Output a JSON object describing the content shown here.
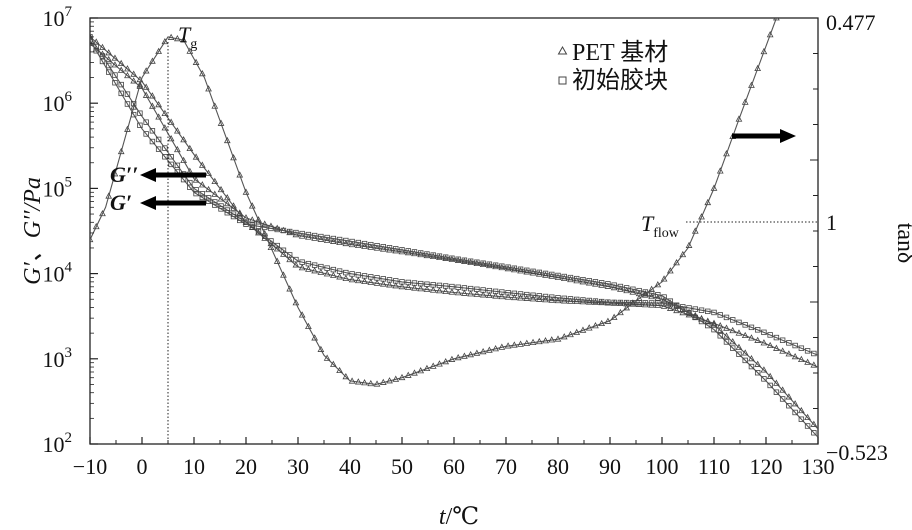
{
  "chart_data": {
    "type": "line",
    "x_axis": {
      "label_var": "t",
      "label_unit": "/℃",
      "range": [
        -10,
        130
      ],
      "ticks": [
        -10,
        0,
        10,
        20,
        30,
        40,
        50,
        60,
        70,
        80,
        90,
        100,
        110,
        120,
        130
      ],
      "tick_labels": [
        "−10",
        "0",
        "10",
        "20",
        "30",
        "40",
        "50",
        "60",
        "70",
        "80",
        "90",
        "100",
        "110",
        "120",
        "130"
      ]
    },
    "y_left": {
      "label": "G′、G′′/Pa",
      "scale": "log",
      "range": [
        100,
        10000000
      ],
      "ticks": [
        {
          "value": 100,
          "base": "10",
          "exp": "2"
        },
        {
          "value": 1000,
          "base": "10",
          "exp": "3"
        },
        {
          "value": 10000,
          "base": "10",
          "exp": "4"
        },
        {
          "value": 100000,
          "base": "10",
          "exp": "5"
        },
        {
          "value": 1000000,
          "base": "10",
          "exp": "6"
        },
        {
          "value": 10000000,
          "base": "10",
          "exp": "7"
        }
      ]
    },
    "y_right": {
      "label": "tanδ",
      "range_labels": [
        "−0.523",
        "1",
        "0.477"
      ]
    },
    "legend": {
      "placement": "top-right",
      "entries": [
        {
          "marker": "triangle",
          "label": "PET 基材"
        },
        {
          "marker": "square",
          "label": "初始胶块"
        }
      ]
    },
    "annotations": {
      "tg": {
        "main": "T",
        "sub": "g",
        "x": 5
      },
      "tflow": {
        "main": "T",
        "sub": "flow",
        "x": 105
      },
      "g_double_prime": "G′′",
      "g_prime": "G′"
    },
    "series": [
      {
        "name": "PET 基材 G′",
        "marker": "triangle",
        "x": [
          -10,
          0,
          10,
          20,
          30,
          40,
          50,
          60,
          70,
          80,
          90,
          100,
          110,
          120,
          130
        ],
        "y": [
          6000000,
          1800000,
          250000,
          40000,
          12000,
          8500,
          7000,
          6000,
          5300,
          4800,
          4500,
          4200,
          2600,
          1500,
          800
        ]
      },
      {
        "name": "PET 基材 G′′",
        "marker": "triangle",
        "x": [
          -10,
          0,
          10,
          20,
          30,
          40,
          50,
          60,
          70,
          80,
          90,
          100,
          110,
          120,
          130
        ],
        "y": [
          5000000,
          1500000,
          130000,
          45000,
          28000,
          22000,
          18000,
          14500,
          11500,
          9000,
          7000,
          5000,
          2500,
          700,
          150
        ]
      },
      {
        "name": "初始胶块 G′",
        "marker": "square",
        "x": [
          -10,
          0,
          10,
          20,
          30,
          40,
          50,
          60,
          70,
          80,
          90,
          100,
          110,
          120,
          130
        ],
        "y": [
          6000000,
          700000,
          100000,
          40000,
          14000,
          10000,
          8000,
          7000,
          6000,
          5200,
          4600,
          4500,
          3500,
          2000,
          1100
        ]
      },
      {
        "name": "初始胶块 G′′",
        "marker": "square",
        "x": [
          -10,
          0,
          10,
          20,
          30,
          40,
          50,
          60,
          70,
          80,
          90,
          100,
          110,
          120,
          130
        ],
        "y": [
          5500000,
          500000,
          90000,
          38000,
          30000,
          24000,
          19000,
          15000,
          12000,
          9500,
          7500,
          5500,
          2200,
          550,
          120
        ]
      },
      {
        "name": "tanδ",
        "marker": "triangle",
        "x": [
          -10,
          -7,
          0,
          5,
          8,
          12,
          20,
          30,
          35,
          40,
          45,
          50,
          60,
          70,
          80,
          90,
          95,
          100,
          105,
          110,
          115,
          122
        ],
        "y": [
          25000,
          60000,
          2000000,
          6000000,
          5500000,
          2000000,
          90000,
          4000,
          1100,
          550,
          500,
          600,
          1000,
          1400,
          1700,
          2800,
          4800,
          8000,
          20000,
          100000,
          700000,
          10000000
        ]
      }
    ]
  }
}
